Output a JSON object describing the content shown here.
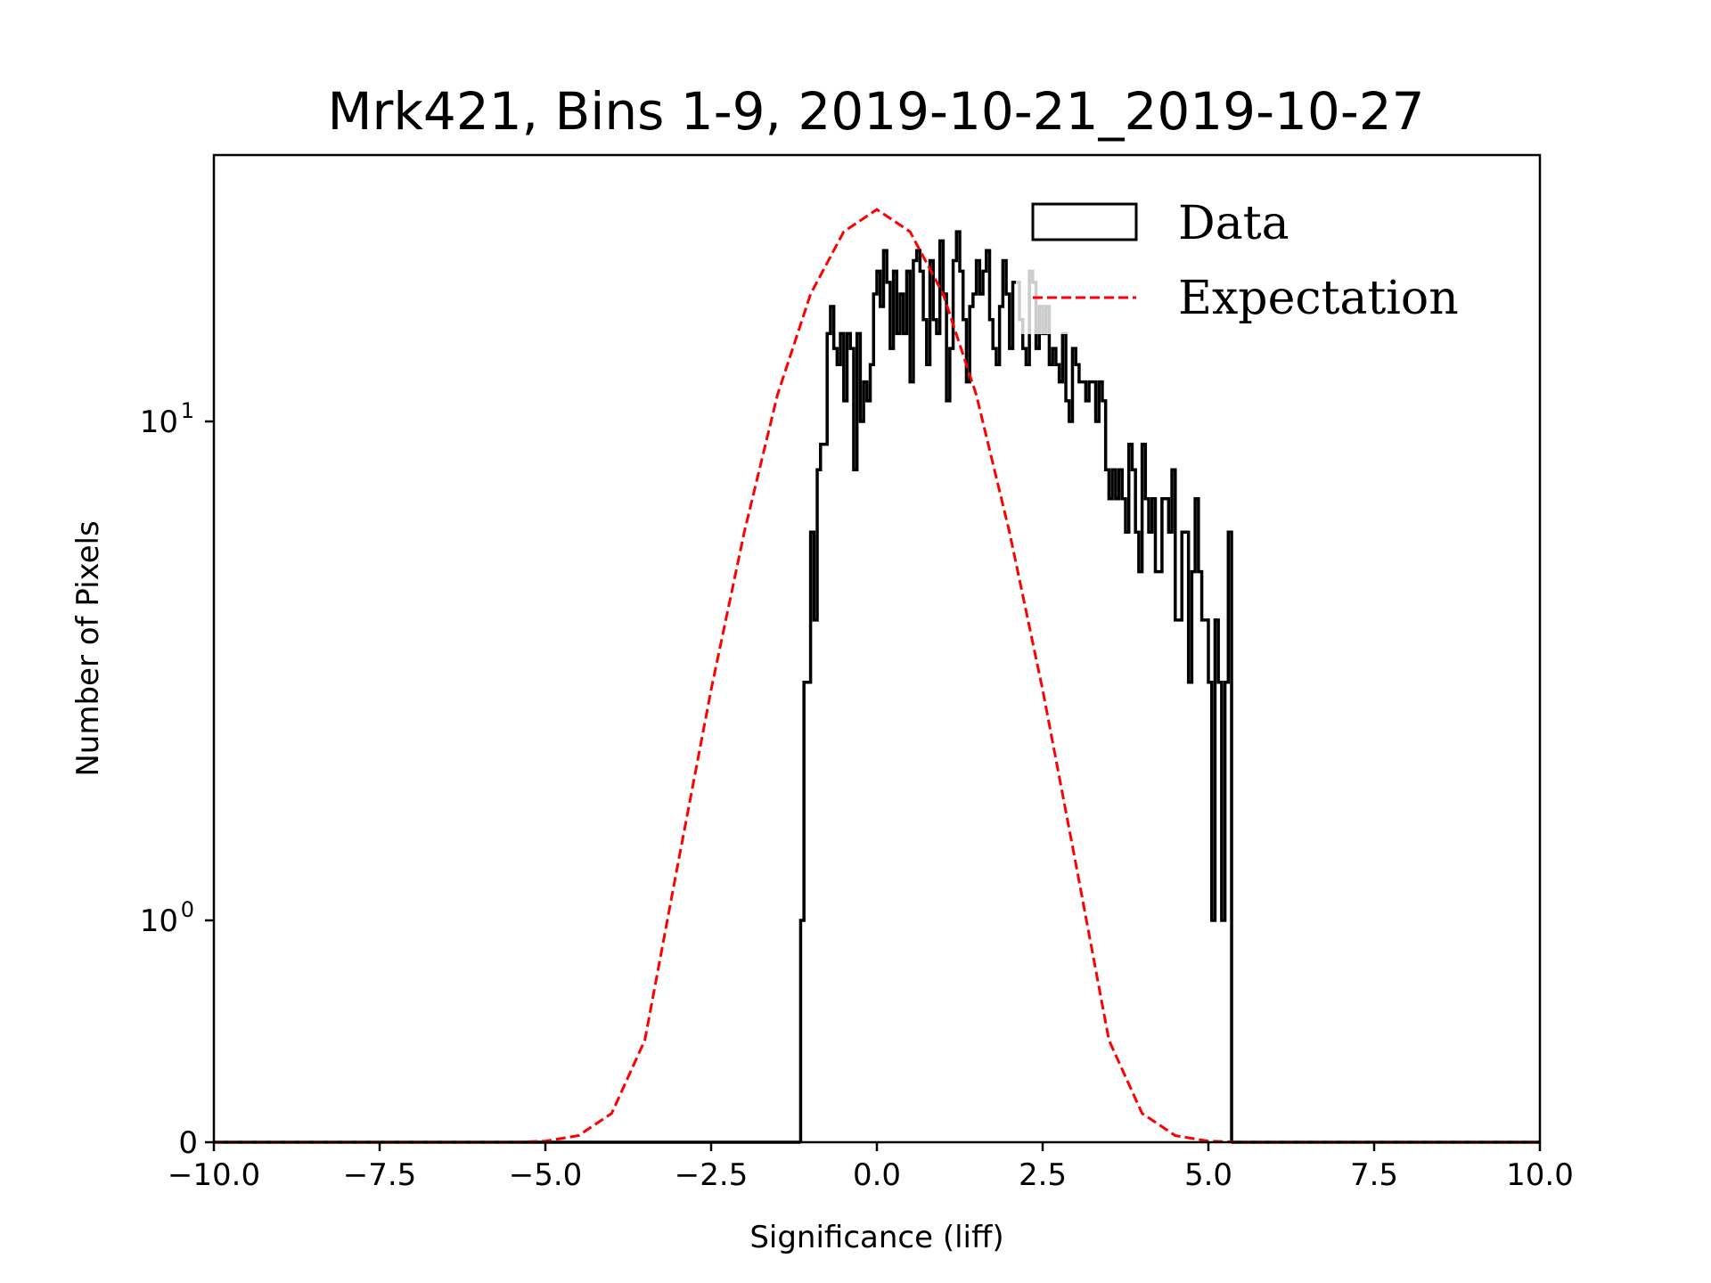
{
  "chart_data": {
    "type": "bar",
    "title": "Mrk421, Bins 1-9, 2019-10-21_2019-10-27",
    "xlabel": "Significance (liff)",
    "ylabel": "Number of Pixels",
    "xlim": [
      -10.0,
      10.0
    ],
    "yscale": "symlog",
    "ylim": [
      0,
      35
    ],
    "x_ticks": [
      -10.0,
      -7.5,
      -5.0,
      -2.5,
      0.0,
      2.5,
      5.0,
      7.5,
      10.0
    ],
    "x_tick_labels": [
      "−10.0",
      "−7.5",
      "−5.0",
      "−2.5",
      "0.0",
      "2.5",
      "5.0",
      "7.5",
      "10.0"
    ],
    "y_ticks": [
      0,
      1,
      10
    ],
    "y_tick_labels": [
      "0",
      "10",
      "10"
    ],
    "y_tick_exponents": [
      "",
      "0",
      "1"
    ],
    "grid": false,
    "legend": {
      "placement": "top-right",
      "entries": [
        "Data",
        "Expectation"
      ]
    },
    "series": [
      {
        "name": "Data",
        "style": "step-histogram",
        "color": "#000000",
        "bin_width": 0.05,
        "bin_start": -1.15,
        "values": [
          1,
          3,
          3,
          6,
          4,
          8,
          9,
          9,
          15,
          17,
          14,
          13,
          15,
          11,
          15,
          14,
          8,
          15,
          10,
          12,
          11,
          13,
          18,
          20,
          17,
          22,
          19,
          14,
          20,
          15,
          18,
          15,
          20,
          12,
          21,
          22,
          20,
          16,
          13,
          21,
          16,
          15,
          23,
          18,
          11,
          14,
          21,
          24,
          20,
          16,
          12,
          17,
          18,
          21,
          18,
          20,
          22,
          16,
          14,
          13,
          17,
          21,
          18,
          14,
          19,
          19,
          16,
          14,
          13,
          20,
          19,
          14,
          17,
          15,
          17,
          13,
          14,
          13,
          12,
          15,
          11,
          10,
          14,
          13,
          12,
          12,
          11,
          12,
          12,
          10,
          12,
          11,
          8,
          7,
          8,
          7,
          8,
          7,
          6,
          9,
          8,
          6,
          5,
          9,
          7,
          6,
          7,
          5,
          5,
          7,
          7,
          6,
          8,
          4,
          4,
          6,
          6,
          3,
          5,
          7,
          5,
          4,
          4,
          3,
          1,
          4,
          3,
          1,
          3,
          6
        ]
      },
      {
        "name": "Expectation",
        "style": "dashed-line",
        "color": "#ff0000",
        "x": [
          -10.0,
          -9.5,
          -9.0,
          -8.5,
          -8.0,
          -7.5,
          -7.0,
          -6.5,
          -6.0,
          -5.5,
          -5.0,
          -4.5,
          -4.0,
          -3.5,
          -3.0,
          -2.5,
          -2.0,
          -1.5,
          -1.0,
          -0.5,
          0.0,
          0.5,
          1.0,
          1.5,
          2.0,
          2.5,
          3.0,
          3.5,
          4.0,
          4.5,
          5.0,
          5.5,
          6.0,
          6.5,
          7.0,
          7.5,
          8.0,
          8.5,
          9.0,
          9.5,
          10.0
        ],
        "values": [
          0,
          0,
          0,
          0,
          0,
          0,
          0,
          0,
          0,
          0,
          0.005,
          0.03,
          0.13,
          0.46,
          1.3,
          2.9,
          6.0,
          11.3,
          18.0,
          24.0,
          26.6,
          24.0,
          18.0,
          11.3,
          6.0,
          2.9,
          1.3,
          0.46,
          0.13,
          0.03,
          0.005,
          0,
          0,
          0,
          0,
          0,
          0,
          0,
          0,
          0,
          0
        ]
      }
    ]
  }
}
